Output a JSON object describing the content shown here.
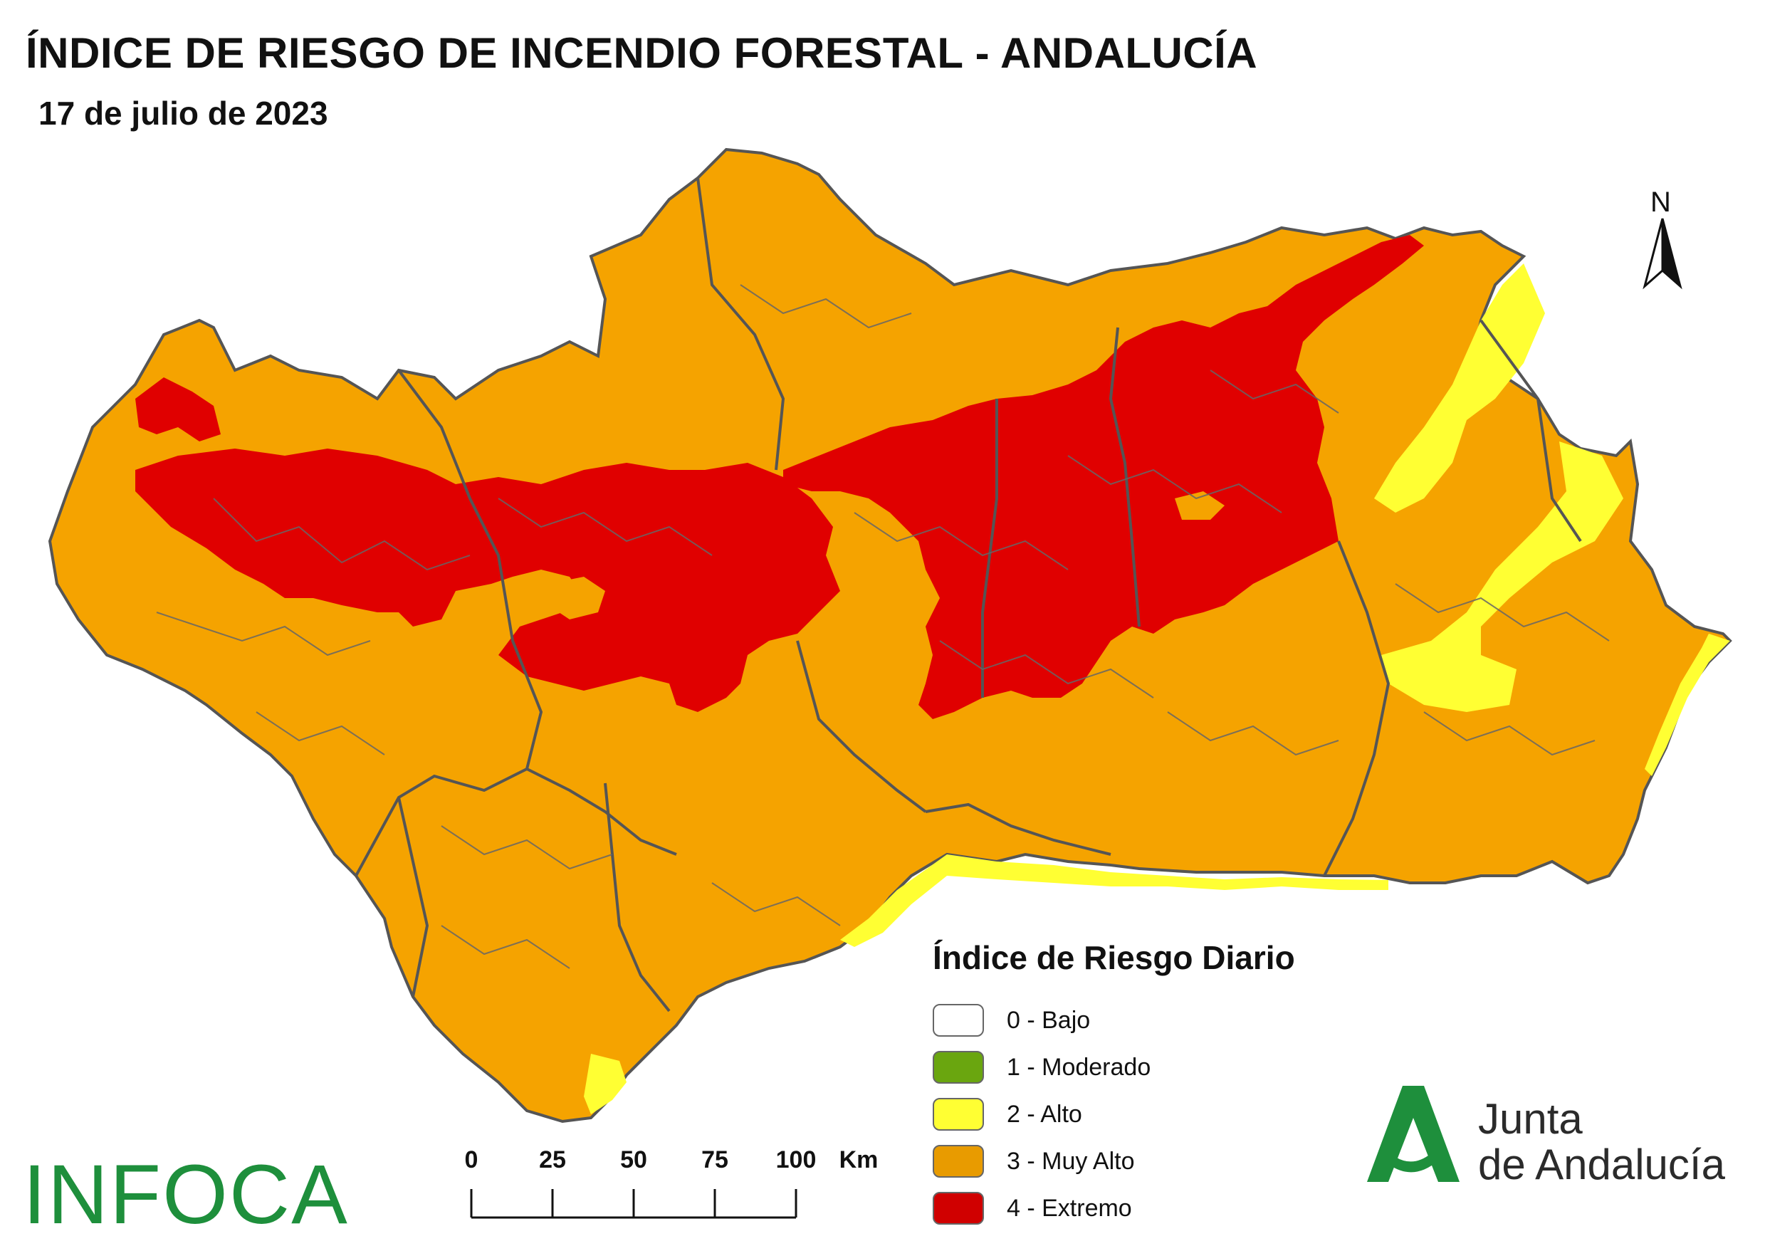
{
  "header": {
    "title": "ÍNDICE DE RIESGO DE INCENDIO FORESTAL - ANDALUCÍA",
    "date": "17 de julio de 2023"
  },
  "map": {
    "region": "Andalucía",
    "north_label": "N",
    "colors": {
      "bajo": "#ffffff",
      "moderado": "#6aa60f",
      "alto": "#ffff33",
      "muy_alto": "#f5a300",
      "extremo": "#e00000",
      "borders": "#555555"
    }
  },
  "legend": {
    "title": "Índice de Riesgo Diario",
    "items": [
      {
        "label": "0 - Bajo",
        "color": "#ffffff"
      },
      {
        "label": "1 - Moderado",
        "color": "#6aa60f"
      },
      {
        "label": "2 - Alto",
        "color": "#ffff33"
      },
      {
        "label": "3 - Muy Alto",
        "color": "#e89b00"
      },
      {
        "label": "4 - Extremo",
        "color": "#d00000"
      }
    ]
  },
  "scale": {
    "ticks": [
      "0",
      "25",
      "50",
      "75",
      "100"
    ],
    "unit": "Km"
  },
  "logos": {
    "infoca": "INFOCA",
    "junta_line1": "Junta",
    "junta_line2": "de Andalucía"
  }
}
